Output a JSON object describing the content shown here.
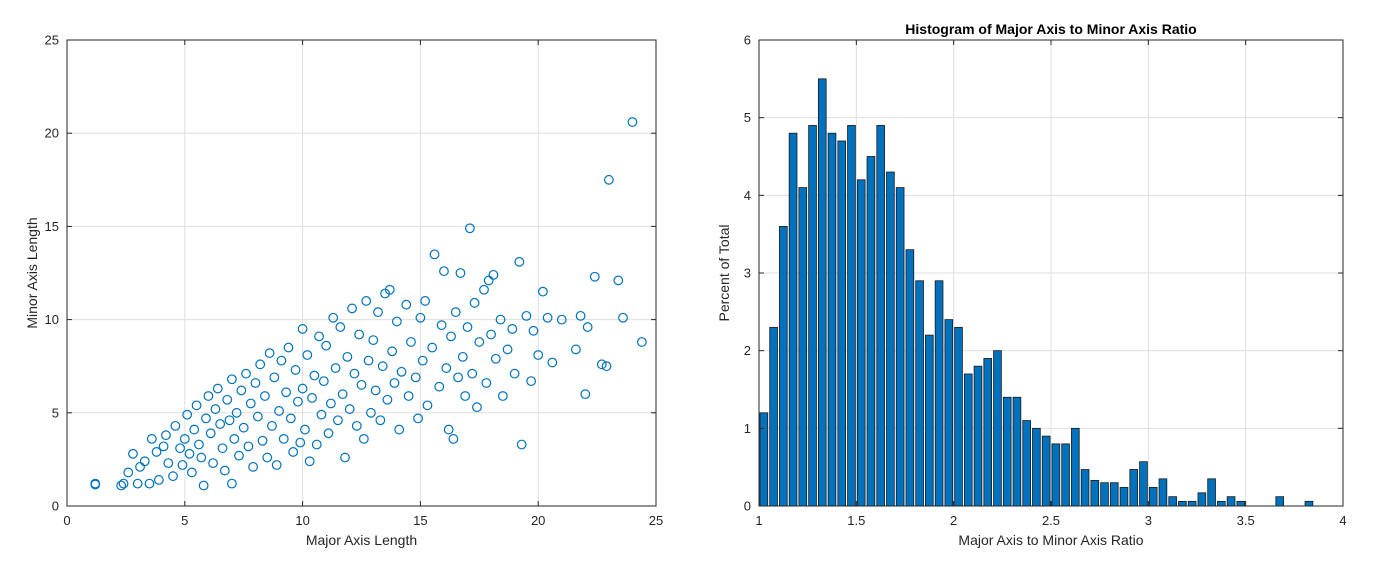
{
  "chart_data": [
    {
      "type": "scatter",
      "title": "",
      "xlabel": "Major Axis Length",
      "ylabel": "Minor Axis Length",
      "xlim": [
        0,
        25
      ],
      "ylim": [
        0,
        25
      ],
      "xticks": [
        0,
        5,
        10,
        15,
        20,
        25
      ],
      "yticks": [
        0,
        5,
        10,
        15,
        20,
        25
      ],
      "grid": true,
      "marker": "open-circle",
      "color": "#0072BD",
      "points": [
        [
          1.2,
          1.2
        ],
        [
          1.2,
          1.15
        ],
        [
          2.3,
          1.1
        ],
        [
          2.4,
          1.2
        ],
        [
          2.6,
          1.8
        ],
        [
          2.8,
          2.8
        ],
        [
          3.0,
          1.2
        ],
        [
          3.1,
          2.1
        ],
        [
          3.3,
          2.4
        ],
        [
          3.5,
          1.2
        ],
        [
          3.6,
          3.6
        ],
        [
          3.8,
          2.9
        ],
        [
          3.9,
          1.4
        ],
        [
          4.1,
          3.2
        ],
        [
          4.2,
          3.8
        ],
        [
          4.3,
          2.3
        ],
        [
          4.5,
          1.6
        ],
        [
          4.6,
          4.3
        ],
        [
          4.8,
          3.1
        ],
        [
          4.9,
          2.2
        ],
        [
          5.0,
          3.6
        ],
        [
          5.1,
          4.9
        ],
        [
          5.2,
          2.8
        ],
        [
          5.3,
          1.8
        ],
        [
          5.4,
          4.1
        ],
        [
          5.5,
          5.4
        ],
        [
          5.6,
          3.3
        ],
        [
          5.7,
          2.6
        ],
        [
          5.8,
          1.1
        ],
        [
          5.9,
          4.7
        ],
        [
          6.0,
          5.9
        ],
        [
          6.1,
          3.9
        ],
        [
          6.2,
          2.3
        ],
        [
          6.3,
          5.2
        ],
        [
          6.4,
          6.3
        ],
        [
          6.5,
          4.4
        ],
        [
          6.6,
          3.1
        ],
        [
          6.7,
          1.9
        ],
        [
          6.8,
          5.7
        ],
        [
          6.9,
          4.6
        ],
        [
          7.0,
          1.2
        ],
        [
          7.0,
          6.8
        ],
        [
          7.1,
          3.6
        ],
        [
          7.2,
          5.0
        ],
        [
          7.3,
          2.7
        ],
        [
          7.4,
          6.2
        ],
        [
          7.5,
          4.2
        ],
        [
          7.6,
          7.1
        ],
        [
          7.7,
          3.2
        ],
        [
          7.8,
          5.5
        ],
        [
          7.9,
          2.1
        ],
        [
          8.0,
          6.6
        ],
        [
          8.1,
          4.8
        ],
        [
          8.2,
          7.6
        ],
        [
          8.3,
          3.5
        ],
        [
          8.4,
          5.9
        ],
        [
          8.5,
          2.6
        ],
        [
          8.6,
          8.2
        ],
        [
          8.7,
          4.3
        ],
        [
          8.8,
          6.9
        ],
        [
          8.9,
          2.2
        ],
        [
          9.0,
          5.1
        ],
        [
          9.1,
          7.8
        ],
        [
          9.2,
          3.6
        ],
        [
          9.3,
          6.1
        ],
        [
          9.4,
          8.5
        ],
        [
          9.5,
          4.7
        ],
        [
          9.6,
          2.9
        ],
        [
          9.7,
          7.3
        ],
        [
          9.8,
          5.6
        ],
        [
          9.9,
          3.4
        ],
        [
          10.0,
          9.5
        ],
        [
          10.0,
          6.3
        ],
        [
          10.1,
          4.1
        ],
        [
          10.2,
          8.1
        ],
        [
          10.3,
          2.4
        ],
        [
          10.4,
          5.8
        ],
        [
          10.5,
          7.0
        ],
        [
          10.6,
          3.3
        ],
        [
          10.7,
          9.1
        ],
        [
          10.8,
          4.9
        ],
        [
          10.9,
          6.7
        ],
        [
          11.0,
          8.6
        ],
        [
          11.1,
          3.9
        ],
        [
          11.2,
          5.5
        ],
        [
          11.3,
          10.1
        ],
        [
          11.4,
          7.4
        ],
        [
          11.5,
          4.6
        ],
        [
          11.6,
          9.6
        ],
        [
          11.7,
          6.0
        ],
        [
          11.8,
          2.6
        ],
        [
          11.9,
          8.0
        ],
        [
          12.0,
          5.2
        ],
        [
          12.1,
          10.6
        ],
        [
          12.2,
          7.1
        ],
        [
          12.3,
          4.3
        ],
        [
          12.4,
          9.2
        ],
        [
          12.5,
          6.5
        ],
        [
          12.6,
          3.6
        ],
        [
          12.7,
          11.0
        ],
        [
          12.8,
          7.8
        ],
        [
          12.9,
          5.0
        ],
        [
          13.0,
          8.9
        ],
        [
          13.1,
          6.2
        ],
        [
          13.2,
          10.4
        ],
        [
          13.3,
          4.6
        ],
        [
          13.4,
          7.5
        ],
        [
          13.5,
          11.4
        ],
        [
          13.6,
          5.7
        ],
        [
          13.7,
          11.6
        ],
        [
          13.8,
          8.3
        ],
        [
          13.9,
          6.6
        ],
        [
          14.0,
          9.9
        ],
        [
          14.1,
          4.1
        ],
        [
          14.2,
          7.2
        ],
        [
          14.4,
          10.8
        ],
        [
          14.5,
          5.9
        ],
        [
          14.6,
          8.8
        ],
        [
          14.8,
          6.9
        ],
        [
          14.9,
          4.7
        ],
        [
          15.0,
          10.1
        ],
        [
          15.1,
          7.8
        ],
        [
          15.2,
          11.0
        ],
        [
          15.3,
          5.4
        ],
        [
          15.5,
          8.5
        ],
        [
          15.6,
          13.5
        ],
        [
          15.8,
          6.4
        ],
        [
          15.9,
          9.7
        ],
        [
          16.0,
          12.6
        ],
        [
          16.1,
          7.4
        ],
        [
          16.2,
          4.1
        ],
        [
          16.3,
          9.1
        ],
        [
          16.4,
          3.6
        ],
        [
          16.5,
          10.4
        ],
        [
          16.6,
          6.9
        ],
        [
          16.7,
          12.5
        ],
        [
          16.8,
          8.0
        ],
        [
          16.9,
          5.9
        ],
        [
          17.0,
          9.6
        ],
        [
          17.1,
          14.9
        ],
        [
          17.2,
          7.1
        ],
        [
          17.3,
          10.9
        ],
        [
          17.4,
          5.3
        ],
        [
          17.5,
          8.8
        ],
        [
          17.7,
          11.6
        ],
        [
          17.8,
          6.6
        ],
        [
          17.9,
          12.1
        ],
        [
          18.0,
          9.2
        ],
        [
          18.1,
          12.4
        ],
        [
          18.2,
          7.9
        ],
        [
          18.4,
          10.0
        ],
        [
          18.5,
          5.9
        ],
        [
          18.7,
          8.4
        ],
        [
          18.9,
          9.5
        ],
        [
          19.0,
          7.1
        ],
        [
          19.2,
          13.1
        ],
        [
          19.3,
          3.3
        ],
        [
          19.5,
          10.2
        ],
        [
          19.7,
          6.7
        ],
        [
          19.8,
          9.4
        ],
        [
          20.0,
          8.1
        ],
        [
          20.2,
          11.5
        ],
        [
          20.4,
          10.1
        ],
        [
          20.6,
          7.7
        ],
        [
          21.0,
          10.0
        ],
        [
          21.6,
          8.4
        ],
        [
          21.8,
          10.2
        ],
        [
          22.0,
          6.0
        ],
        [
          22.1,
          9.6
        ],
        [
          22.4,
          12.3
        ],
        [
          22.7,
          7.6
        ],
        [
          22.9,
          7.5
        ],
        [
          23.0,
          17.5
        ],
        [
          23.4,
          12.1
        ],
        [
          23.6,
          10.1
        ],
        [
          24.0,
          20.6
        ],
        [
          24.4,
          8.8
        ]
      ]
    },
    {
      "type": "bar",
      "title": "Histogram of Major Axis to Minor Axis Ratio",
      "xlabel": "Major Axis to Minor Axis Ratio",
      "ylabel": "Percent of Total",
      "xlim": [
        1,
        4
      ],
      "ylim": [
        0,
        6
      ],
      "xticks": [
        1,
        1.5,
        2,
        2.5,
        3,
        3.5,
        4
      ],
      "yticks": [
        0,
        1,
        2,
        3,
        4,
        5,
        6
      ],
      "grid": true,
      "color": "#0072BD",
      "bin_start": 1.0,
      "bin_width": 0.05,
      "values": [
        1.2,
        2.3,
        3.6,
        4.8,
        4.1,
        4.9,
        5.5,
        4.8,
        4.7,
        4.9,
        4.2,
        4.5,
        4.9,
        4.3,
        4.1,
        3.3,
        2.9,
        2.2,
        2.9,
        2.4,
        2.3,
        1.7,
        1.8,
        1.9,
        2.0,
        1.4,
        1.4,
        1.1,
        1.0,
        0.9,
        0.8,
        0.8,
        1.0,
        0.47,
        0.33,
        0.3,
        0.3,
        0.24,
        0.47,
        0.57,
        0.24,
        0.35,
        0.12,
        0.06,
        0.06,
        0.17,
        0.35,
        0.06,
        0.12,
        0.06,
        0,
        0,
        0,
        0.12,
        0,
        0,
        0.06,
        0
      ]
    }
  ]
}
